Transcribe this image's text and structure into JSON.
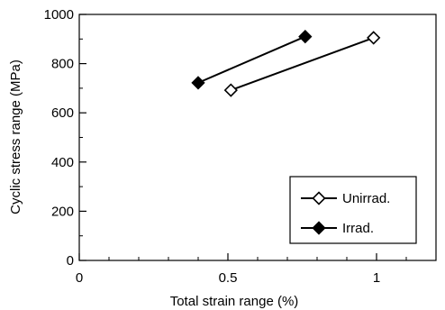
{
  "chart_data": {
    "type": "line",
    "title": "",
    "xlabel": "Total strain range (%)",
    "ylabel": "Cyclic stress range (MPa)",
    "xlim": [
      0,
      1.2
    ],
    "ylim": [
      0,
      1000
    ],
    "x_ticks": [
      "0",
      "0.5",
      "1"
    ],
    "y_ticks": [
      "0",
      "200",
      "400",
      "600",
      "800",
      "1000"
    ],
    "grid": false,
    "legend_position": "bottom-right",
    "series": [
      {
        "name": "Unirrad.",
        "marker": "open-diamond",
        "color": "#000000",
        "points": [
          {
            "x": 0.51,
            "y": 692
          },
          {
            "x": 0.99,
            "y": 905
          }
        ]
      },
      {
        "name": "Irrad.",
        "marker": "filled-diamond",
        "color": "#000000",
        "points": [
          {
            "x": 0.4,
            "y": 722
          },
          {
            "x": 0.76,
            "y": 910
          }
        ]
      }
    ]
  }
}
